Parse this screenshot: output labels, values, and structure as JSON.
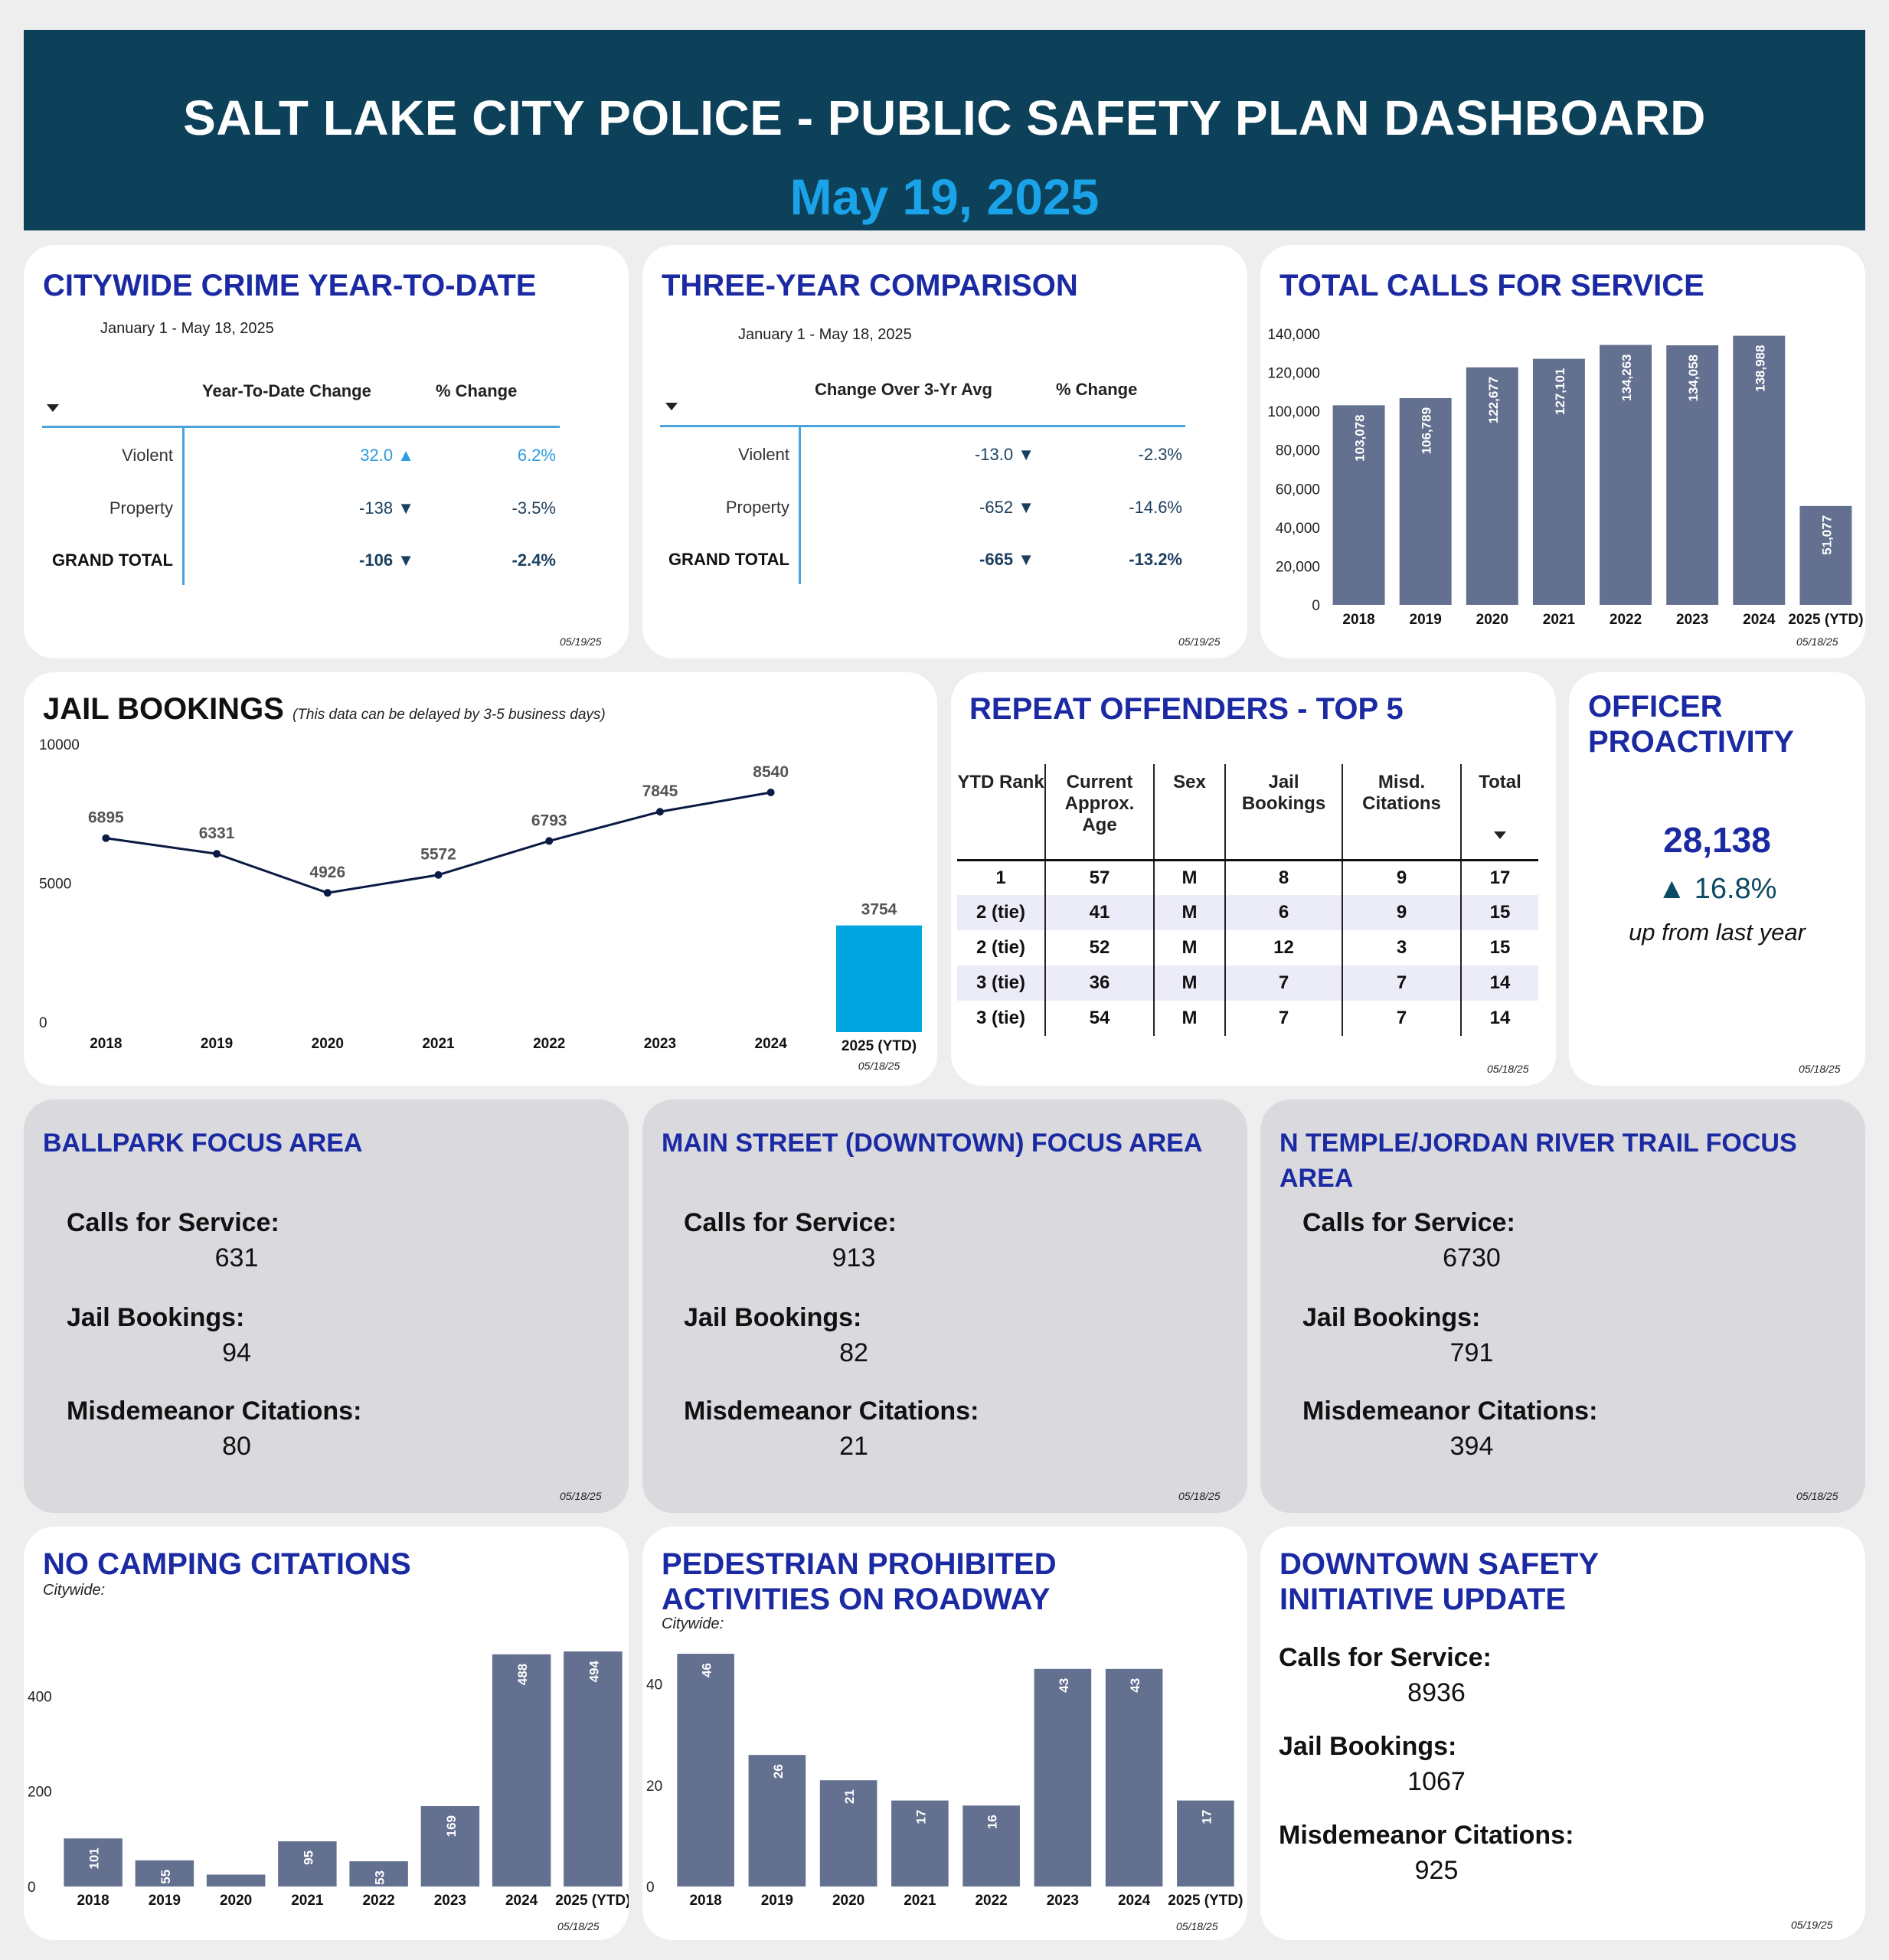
{
  "header": {
    "title": "SALT LAKE CITY POLICE - PUBLIC SAFETY PLAN DASHBOARD",
    "date": "May 19, 2025"
  },
  "ytd": {
    "title": "CITYWIDE CRIME YEAR-TO-DATE",
    "subtitle": "January 1 - May 18, 2025",
    "col1": "Year-To-Date Change",
    "col2": "% Change",
    "rows": [
      {
        "label": "Violent",
        "change": "32.0",
        "pct": "6.2%",
        "arrow": "▲"
      },
      {
        "label": "Property",
        "change": "-138",
        "pct": "-3.5%",
        "arrow": "▼"
      },
      {
        "label": "GRAND TOTAL",
        "change": "-106",
        "pct": "-2.4%",
        "arrow": "▼"
      }
    ],
    "stamp": "05/19/25",
    "colors": {
      "violent": "#2e9be0",
      "other": "#1b3f5f"
    }
  },
  "three": {
    "title": "THREE-YEAR COMPARISON",
    "subtitle": "January 1 - May 18, 2025",
    "col1": "Change Over 3-Yr Avg",
    "col2": "% Change",
    "rows": [
      {
        "label": "Violent",
        "change": "-13.0",
        "pct": "-2.3%",
        "arrow": "▼"
      },
      {
        "label": "Property",
        "change": "-652",
        "pct": "-14.6%",
        "arrow": "▼"
      },
      {
        "label": "GRAND TOTAL",
        "change": "-665",
        "pct": "-13.2%",
        "arrow": "▼"
      }
    ],
    "stamp": "05/19/25"
  },
  "calls": {
    "title": "TOTAL CALLS FOR SERVICE",
    "stamp": "05/18/25"
  },
  "jail": {
    "title": "JAIL BOOKINGS",
    "note": "(This data can be delayed by 3-5 business days)",
    "stamp": "05/18/25"
  },
  "repeat": {
    "title": "REPEAT OFFENDERS - TOP 5",
    "headers": [
      "YTD Rank",
      "Current Approx. Age",
      "Sex",
      "Jail Bookings",
      "Misd. Citations",
      "Total"
    ],
    "rows": [
      [
        "1",
        "57",
        "M",
        "8",
        "9",
        "17"
      ],
      [
        "2 (tie)",
        "41",
        "M",
        "6",
        "9",
        "15"
      ],
      [
        "2 (tie)",
        "52",
        "M",
        "12",
        "3",
        "15"
      ],
      [
        "3 (tie)",
        "36",
        "M",
        "7",
        "7",
        "14"
      ],
      [
        "3 (tie)",
        "54",
        "M",
        "7",
        "7",
        "14"
      ]
    ],
    "stamp": "05/18/25"
  },
  "proactivity": {
    "title": "OFFICER PROACTIVITY",
    "value": "28,138",
    "change": "▲ 16.8%",
    "caption": "up from last year",
    "stamp": "05/18/25"
  },
  "focus": [
    {
      "title": "BALLPARK FOCUS AREA",
      "calls_label": "Calls for Service:",
      "calls": "631",
      "jail_label": "Jail Bookings:",
      "jail": "94",
      "misd_label": "Misdemeanor Citations:",
      "misd": "80",
      "stamp": "05/18/25"
    },
    {
      "title": "MAIN STREET (DOWNTOWN) FOCUS AREA",
      "calls_label": "Calls for Service:",
      "calls": "913",
      "jail_label": "Jail Bookings:",
      "jail": "82",
      "misd_label": "Misdemeanor Citations:",
      "misd": "21",
      "stamp": "05/18/25"
    },
    {
      "title": "N TEMPLE/JORDAN RIVER TRAIL FOCUS AREA",
      "calls_label": "Calls for Service:",
      "calls": "6730",
      "jail_label": "Jail Bookings:",
      "jail": "791",
      "misd_label": "Misdemeanor Citations:",
      "misd": "394",
      "stamp": "05/18/25"
    }
  ],
  "camping": {
    "title": "NO CAMPING CITATIONS",
    "subtitle": "Citywide:",
    "stamp": "05/18/25"
  },
  "pedestrian": {
    "title_line1": "PEDESTRIAN PROHIBITED",
    "title_line2": "ACTIVITIES ON ROADWAY",
    "subtitle": "Citywide:",
    "stamp": "05/18/25"
  },
  "downtown": {
    "title_line1": "DOWNTOWN SAFETY",
    "title_line2": "INITIATIVE UPDATE",
    "calls_label": "Calls for Service:",
    "calls": "8936",
    "jail_label": "Jail Bookings:",
    "jail": "1067",
    "misd_label": "Misdemeanor Citations:",
    "misd": "925",
    "stamp": "05/19/25"
  },
  "chart_data": [
    {
      "id": "calls",
      "type": "bar",
      "categories": [
        "2018",
        "2019",
        "2020",
        "2021",
        "2022",
        "2023",
        "2024",
        "2025 (YTD)"
      ],
      "values": [
        103078,
        106789,
        122677,
        127101,
        134263,
        134058,
        138988,
        51077
      ],
      "labels": [
        "103,078",
        "106,789",
        "122,677",
        "127,101",
        "134,263",
        "134,058",
        "138,988",
        "51,077"
      ],
      "ylim": [
        0,
        140000
      ],
      "yticks": [
        0,
        20000,
        40000,
        60000,
        80000,
        100000,
        120000,
        140000
      ],
      "ytick_labels": [
        "0",
        "20,000",
        "40,000",
        "60,000",
        "80,000",
        "100,000",
        "120,000",
        "140,000"
      ],
      "color": "#63708f"
    },
    {
      "id": "jail",
      "type": "line",
      "categories": [
        "2018",
        "2019",
        "2020",
        "2021",
        "2022",
        "2023",
        "2024"
      ],
      "values": [
        6895,
        6331,
        4926,
        5572,
        6793,
        7845,
        8540
      ],
      "ytd_bar": {
        "category": "2025 (YTD)",
        "value": 3754,
        "stamp": "05/18/25",
        "color": "#00a6e0"
      },
      "ylim": [
        0,
        10000
      ],
      "yticks": [
        0,
        5000,
        10000
      ],
      "color": "#0b1a44"
    },
    {
      "id": "camping",
      "type": "bar",
      "categories": [
        "2018",
        "2019",
        "2020",
        "2021",
        "2022",
        "2023",
        "2024",
        "2025 (YTD)"
      ],
      "values": [
        101,
        55,
        25,
        95,
        53,
        169,
        488,
        494
      ],
      "labels": [
        "101",
        "55",
        "",
        "95",
        "53",
        "169",
        "488",
        "494"
      ],
      "ylim": [
        0,
        494
      ],
      "yticks": [
        0,
        200,
        400
      ],
      "color": "#63708f"
    },
    {
      "id": "pedestrian",
      "type": "bar",
      "categories": [
        "2018",
        "2019",
        "2020",
        "2021",
        "2022",
        "2023",
        "2024",
        "2025 (YTD)"
      ],
      "values": [
        46,
        26,
        21,
        17,
        16,
        43,
        43,
        17
      ],
      "labels": [
        "46",
        "26",
        "21",
        "17",
        "16",
        "43",
        "43",
        "17"
      ],
      "ylim": [
        0,
        46
      ],
      "yticks": [
        0,
        20,
        40
      ],
      "color": "#63708f"
    }
  ]
}
